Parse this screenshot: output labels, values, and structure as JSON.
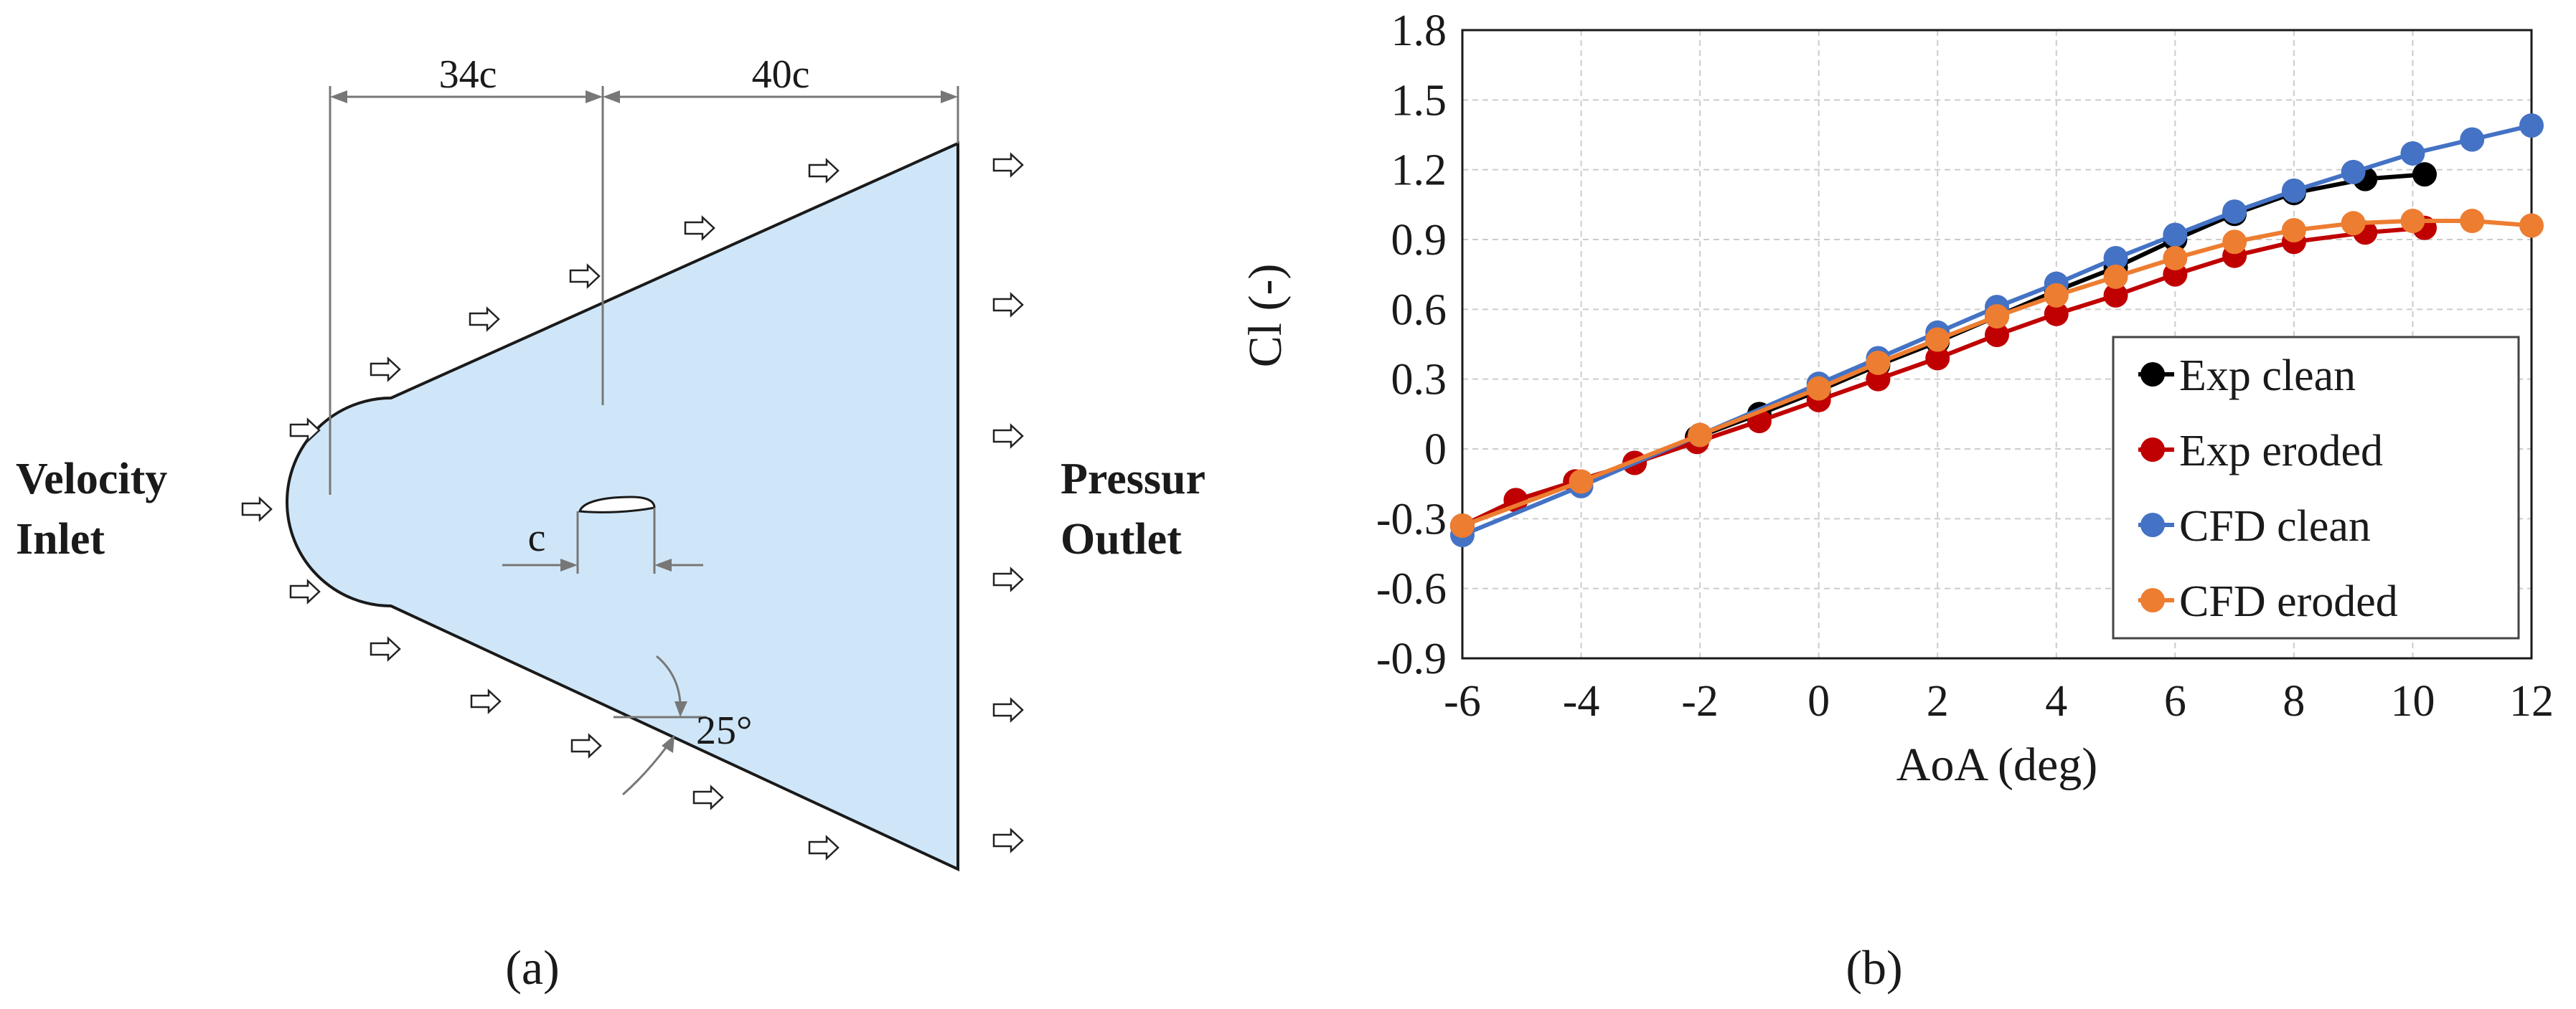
{
  "panel_a": {
    "label": "(a)",
    "dim_upstream": "34c",
    "dim_downstream": "40c",
    "chord_label": "c",
    "angle_label": "25°",
    "inlet_label_line1": "Velocity",
    "inlet_label_line2": "Inlet",
    "outlet_label_line1": "Pressur",
    "outlet_label_line2": "Outlet",
    "domain_fill": "#cfe6f8"
  },
  "panel_b": {
    "label": "(b)"
  },
  "chart_data": {
    "type": "line",
    "xlabel": "AoA (deg)",
    "ylabel": "Cl (-)",
    "xlim": [
      -6,
      12
    ],
    "ylim": [
      -0.9,
      1.8
    ],
    "xticks": [
      "-6",
      "-4",
      "-2",
      "0",
      "2",
      "4",
      "6",
      "8",
      "10",
      "12"
    ],
    "yticks": [
      "-0.9",
      "-0.6",
      "-0.3",
      "0",
      "0.3",
      "0.6",
      "0.9",
      "1.2",
      "1.5",
      "1.8"
    ],
    "grid": true,
    "legend_position": "bottom-right",
    "series": [
      {
        "name": "Exp clean",
        "color": "#000000",
        "x": [
          -6,
          -5.1,
          -4.1,
          -3.1,
          -2.05,
          -1,
          0,
          1,
          2,
          3,
          4,
          5,
          6,
          7,
          8,
          9.2,
          10.2
        ],
        "y": [
          -0.33,
          -0.22,
          -0.14,
          -0.06,
          0.05,
          0.15,
          0.25,
          0.36,
          0.46,
          0.57,
          0.68,
          0.78,
          0.9,
          1.01,
          1.1,
          1.16,
          1.18
        ]
      },
      {
        "name": "Exp eroded",
        "color": "#c00000",
        "x": [
          -6,
          -5.1,
          -4.1,
          -3.1,
          -2.05,
          -1,
          0,
          1,
          2,
          3,
          4,
          5,
          6,
          7,
          8,
          9.2,
          10.2
        ],
        "y": [
          -0.33,
          -0.22,
          -0.14,
          -0.06,
          0.03,
          0.12,
          0.21,
          0.3,
          0.39,
          0.49,
          0.58,
          0.66,
          0.75,
          0.83,
          0.89,
          0.93,
          0.95
        ]
      },
      {
        "name": "CFD clean",
        "color": "#4472c4",
        "x": [
          -6,
          -4,
          -2,
          0,
          1,
          2,
          3,
          4,
          5,
          6,
          7,
          8,
          9,
          10,
          11,
          12
        ],
        "y": [
          -0.37,
          -0.16,
          0.06,
          0.28,
          0.39,
          0.5,
          0.61,
          0.71,
          0.82,
          0.92,
          1.02,
          1.11,
          1.19,
          1.27,
          1.33,
          1.39
        ]
      },
      {
        "name": "CFD eroded",
        "color": "#ed7d31",
        "x": [
          -6,
          -4,
          -2,
          0,
          1,
          2,
          3,
          4,
          5,
          6,
          7,
          8,
          9,
          10,
          11,
          12
        ],
        "y": [
          -0.33,
          -0.14,
          0.06,
          0.26,
          0.37,
          0.47,
          0.57,
          0.66,
          0.74,
          0.82,
          0.89,
          0.94,
          0.97,
          0.98,
          0.98,
          0.96
        ]
      }
    ]
  }
}
